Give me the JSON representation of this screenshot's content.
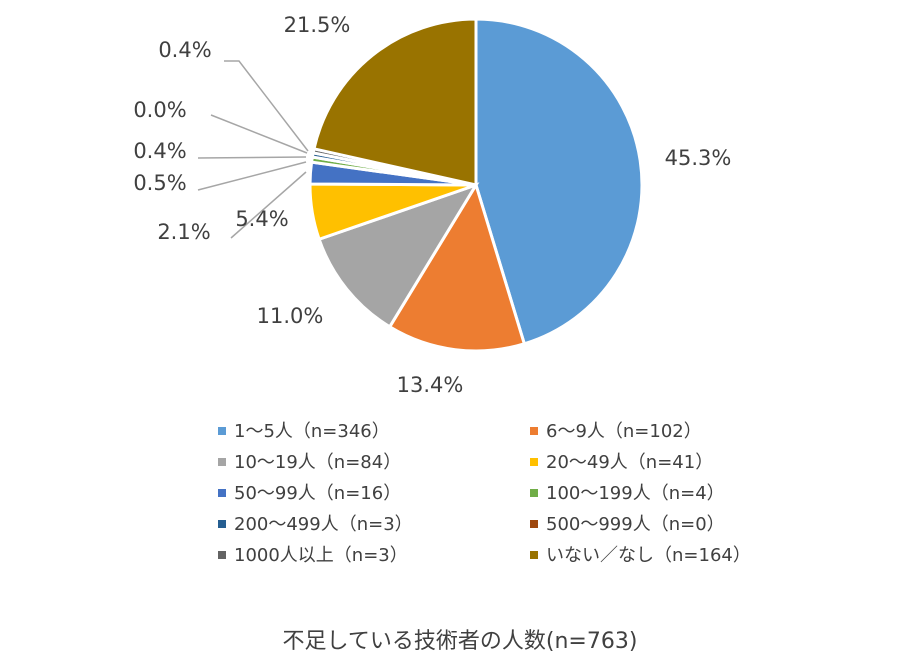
{
  "caption": "不足している技術者の人数(n=763)",
  "chart_data": {
    "type": "pie",
    "title": "",
    "slices": [
      {
        "name": "1～5人（n=346）",
        "value": 45.3,
        "label": "45.3%",
        "color": "#5B9BD5"
      },
      {
        "name": "6～9人（n=102）",
        "value": 13.4,
        "label": "13.4%",
        "color": "#ED7D31"
      },
      {
        "name": "10～19人（n=84）",
        "value": 11.0,
        "label": "11.0%",
        "color": "#A5A5A5"
      },
      {
        "name": "20～49人（n=41）",
        "value": 5.4,
        "label": "5.4%",
        "color": "#FFC000"
      },
      {
        "name": "50～99人（n=16）",
        "value": 2.1,
        "label": "2.1%",
        "color": "#4472C4"
      },
      {
        "name": "100～199人（n=4）",
        "value": 0.5,
        "label": "0.5%",
        "color": "#70AD47"
      },
      {
        "name": "200～499人（n=3）",
        "value": 0.4,
        "label": "0.4%",
        "color": "#255E91"
      },
      {
        "name": "500～999人（n=0）",
        "value": 0.0,
        "label": "0.0%",
        "color": "#9E480E"
      },
      {
        "name": "1000人以上（n=3）",
        "value": 0.4,
        "label": "0.4%",
        "color": "#636363"
      },
      {
        "name": "いない／なし（n=164）",
        "value": 21.5,
        "label": "21.5%",
        "color": "#997300"
      }
    ],
    "legend_position": "bottom"
  }
}
